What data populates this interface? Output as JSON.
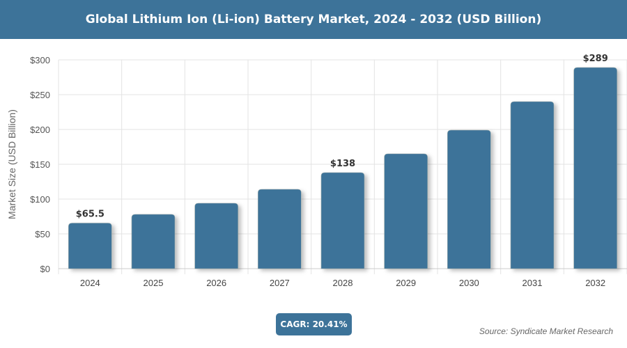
{
  "title": "Global Lithium Ion (Li-ion) Battery Market, 2024 - 2032 (USD Billion)",
  "cagr": "CAGR: 20.41%",
  "source": "Source: Syndicate Market Research",
  "colors": {
    "bar": "#3d7399",
    "header": "#3d7399"
  },
  "chart_data": {
    "type": "bar",
    "title": "Global Lithium Ion (Li-ion) Battery Market, 2024 - 2032 (USD Billion)",
    "xlabel": "",
    "ylabel": "Market Size (USD Billion)",
    "categories": [
      "2024",
      "2025",
      "2026",
      "2027",
      "2028",
      "2029",
      "2030",
      "2031",
      "2032"
    ],
    "values": [
      65.5,
      78,
      94,
      114,
      138,
      165,
      199,
      240,
      289
    ],
    "data_labels": {
      "2024": "$65.5",
      "2028": "$138",
      "2032": "$289"
    },
    "ylim": [
      0,
      300
    ],
    "yticks": [
      "$0",
      "$50",
      "$100",
      "$150",
      "$200",
      "$250",
      "$300"
    ],
    "grid": true,
    "legend": "none"
  }
}
